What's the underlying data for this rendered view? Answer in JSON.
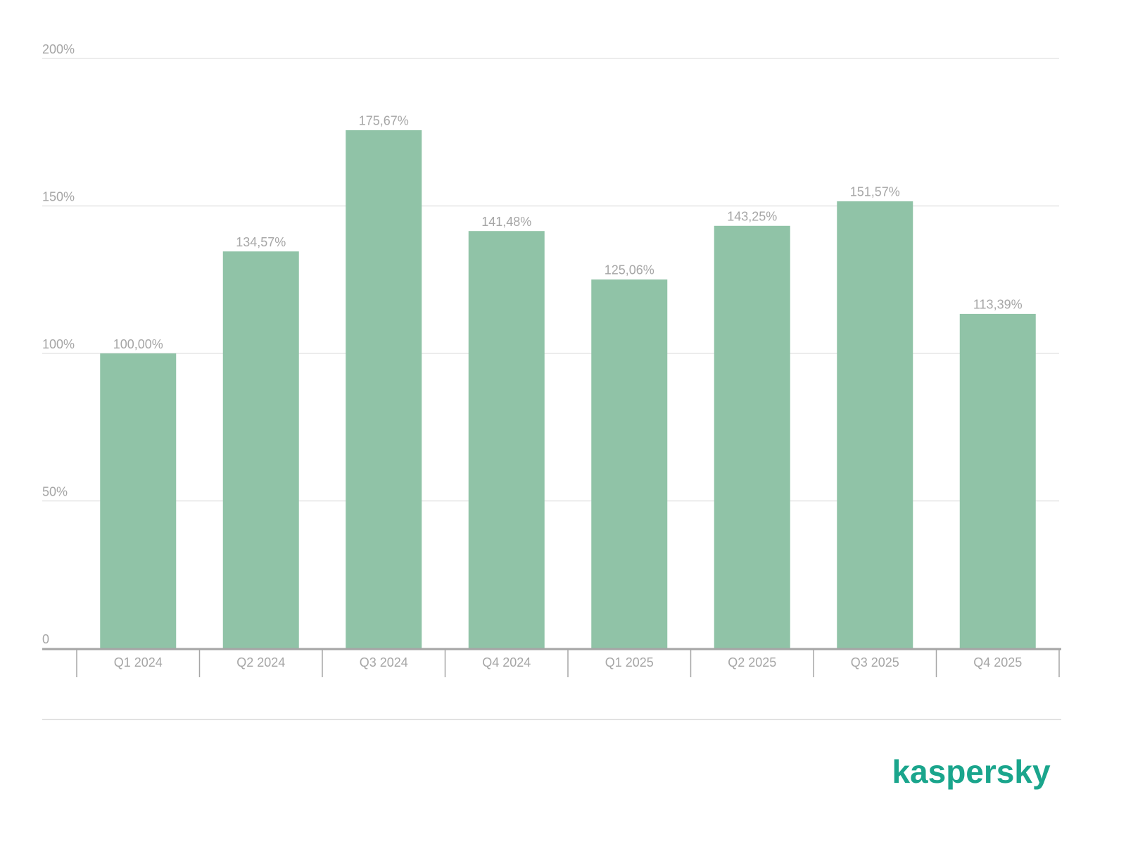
{
  "chart_data": {
    "type": "bar",
    "categories": [
      "Q1 2024",
      "Q2 2024",
      "Q3 2024",
      "Q4 2024",
      "Q1 2025",
      "Q2 2025",
      "Q3 2025",
      "Q4 2025"
    ],
    "values": [
      100.0,
      134.57,
      175.67,
      141.48,
      125.06,
      143.25,
      151.57,
      113.39
    ],
    "value_labels": [
      "100,00%",
      "134,57%",
      "175,67%",
      "141,48%",
      "125,06%",
      "143,25%",
      "151,57%",
      "113,39%"
    ],
    "color": "#90c3a7",
    "ylim": [
      0,
      200
    ],
    "yticks": [
      0,
      {
        "value": 50,
        "label": "50%"
      },
      {
        "value": 100,
        "label": "100%"
      },
      {
        "value": 150,
        "label": "150%"
      },
      {
        "value": 200,
        "label": "200%"
      }
    ],
    "grid": true
  },
  "logo": "kaspersky"
}
